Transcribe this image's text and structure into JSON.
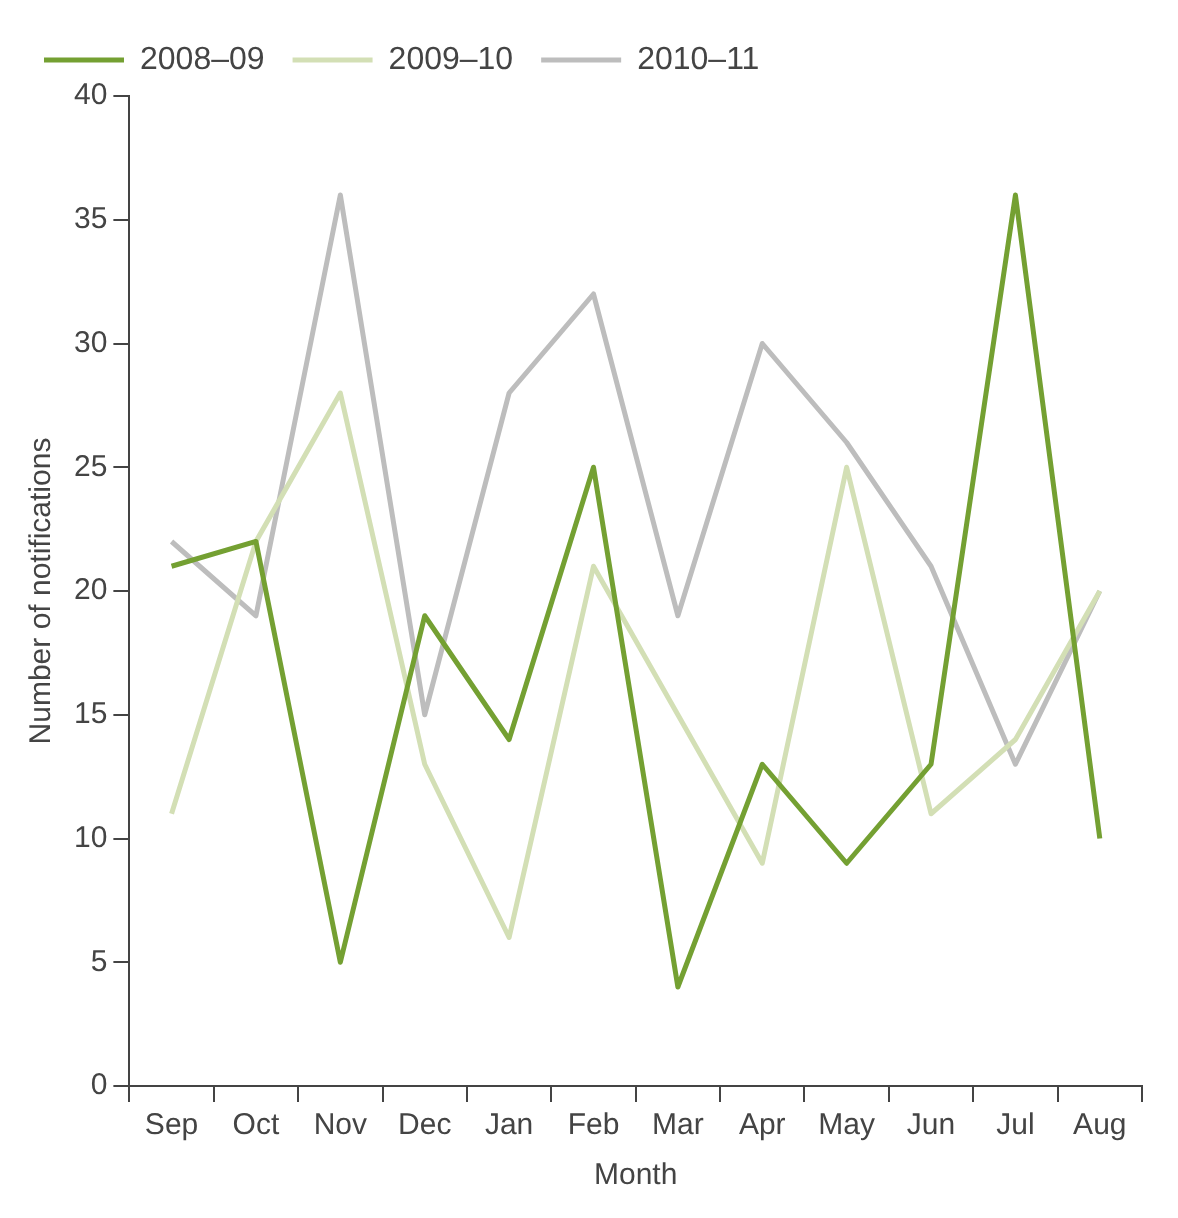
{
  "chart_data": {
    "type": "line",
    "xlabel": "Month",
    "ylabel": "Number of notifications",
    "categories": [
      "Sep",
      "Oct",
      "Nov",
      "Dec",
      "Jan",
      "Feb",
      "Mar",
      "Apr",
      "May",
      "Jun",
      "Jul",
      "Aug"
    ],
    "series": [
      {
        "name": "2008–09",
        "color": "#74a032",
        "values": [
          21,
          22,
          5,
          19,
          14,
          25,
          4,
          13,
          9,
          13,
          36,
          10
        ]
      },
      {
        "name": "2009–10",
        "color": "#d3dfb5",
        "values": [
          11,
          22,
          28,
          13,
          6,
          21,
          15,
          9,
          25,
          11,
          14,
          20
        ]
      },
      {
        "name": "2010–11",
        "color": "#bdbdbd",
        "values": [
          22,
          19,
          36,
          15,
          28,
          32,
          19,
          30,
          26,
          21,
          13,
          20
        ]
      }
    ],
    "ylim": [
      0,
      40
    ],
    "yticks": [
      0,
      5,
      10,
      15,
      20,
      25,
      30,
      35,
      40
    ],
    "grid": false,
    "legend": "top left",
    "marker": "none",
    "line_style": "solid"
  }
}
